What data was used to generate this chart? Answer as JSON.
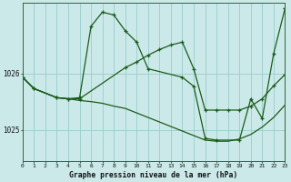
{
  "background_color": "#cce9e9",
  "grid_color": "#99cccc",
  "line_color": "#1a5c1a",
  "title": "Graphe pression niveau de la mer (hPa)",
  "xlim": [
    0,
    23
  ],
  "ylim": [
    1024.45,
    1027.25
  ],
  "yticks": [
    1025,
    1026
  ],
  "xticks": [
    0,
    1,
    2,
    3,
    4,
    5,
    6,
    7,
    8,
    9,
    10,
    11,
    12,
    13,
    14,
    15,
    16,
    17,
    18,
    19,
    20,
    21,
    22,
    23
  ],
  "series": [
    {
      "x": [
        0,
        1,
        3,
        4,
        5,
        6,
        7,
        8,
        9,
        10,
        11,
        14,
        15,
        16,
        17,
        19,
        20,
        21,
        22,
        23
      ],
      "y": [
        1025.93,
        1025.73,
        1025.57,
        1025.55,
        1025.57,
        1026.83,
        1027.08,
        1027.03,
        1026.75,
        1026.55,
        1026.08,
        1025.93,
        1025.77,
        1024.85,
        1024.82,
        1024.82,
        1025.55,
        1025.2,
        1026.35,
        1027.15
      ],
      "marker": true
    },
    {
      "x": [
        0,
        1,
        3,
        4,
        5,
        9,
        10,
        11,
        12,
        13,
        14,
        15,
        16,
        17,
        18,
        19,
        20,
        21,
        22,
        23
      ],
      "y": [
        1025.93,
        1025.73,
        1025.57,
        1025.55,
        1025.55,
        1026.1,
        1026.2,
        1026.32,
        1026.42,
        1026.5,
        1026.55,
        1026.08,
        1025.35,
        1025.35,
        1025.35,
        1025.35,
        1025.42,
        1025.55,
        1025.78,
        1025.98
      ],
      "marker": true
    },
    {
      "x": [
        0,
        1,
        3,
        4,
        5,
        6,
        7,
        8,
        9,
        10,
        11,
        12,
        13,
        14,
        15,
        16,
        17,
        18,
        19,
        20,
        21,
        22,
        23
      ],
      "y": [
        1025.93,
        1025.73,
        1025.57,
        1025.55,
        1025.52,
        1025.5,
        1025.47,
        1025.42,
        1025.38,
        1025.3,
        1025.22,
        1025.14,
        1025.06,
        1024.98,
        1024.9,
        1024.82,
        1024.8,
        1024.8,
        1024.84,
        1024.92,
        1025.05,
        1025.22,
        1025.44
      ],
      "marker": false
    }
  ]
}
